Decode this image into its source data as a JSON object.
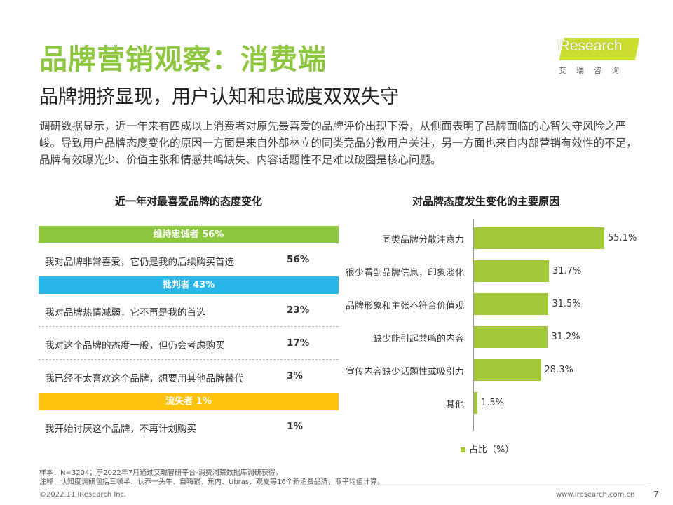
{
  "header": {
    "title": "品牌营销观察：消费端",
    "subtitle": "品牌拥挤显现，用户认知和忠诚度双双失守",
    "intro": "调研数据显示，近一年来有四成以上消费者对原先最喜爱的品牌评价出现下滑，从侧面表明了品牌面临的心智失守风险之严峻。导致用户品牌态度变化的原因一方面是来自外部林立的同类竞品分散用户关注，另一方面也来自内部营销有效性的不足，品牌有效曝光少、价值主张和情感共鸣缺失、内容话题性不足难以破圈是核心问题。"
  },
  "logo": {
    "word_i": "i",
    "word_rest": "Research",
    "cn": "艾瑞咨询"
  },
  "colors": {
    "green": "#8dc63f",
    "blue": "#29b6e8",
    "yellow": "#ffc20e",
    "bar": "#a3c93a"
  },
  "chart_data": [
    {
      "type": "table",
      "title": "近一年对最喜爱品牌的态度变化",
      "groups": [
        {
          "name": "维持忠诚者 56%",
          "color": "#8dc63f",
          "rows": [
            {
              "label": "我对品牌非常喜爱，它仍是我的后续购买首选",
              "value": "56%"
            }
          ]
        },
        {
          "name": "批判者 43%",
          "color": "#29b6e8",
          "rows": [
            {
              "label": "我对品牌热情减弱，它不再是我的首选",
              "value": "23%"
            },
            {
              "label": "我对这个品牌的态度一般，但仍会考虑购买",
              "value": "17%"
            },
            {
              "label": "我已经不太喜欢这个品牌，想要用其他品牌替代",
              "value": "3%"
            }
          ]
        },
        {
          "name": "流失者 1%",
          "color": "#ffc20e",
          "rows": [
            {
              "label": "我开始讨厌这个品牌，不再计划购买",
              "value": "1%"
            }
          ]
        }
      ]
    },
    {
      "type": "bar",
      "orientation": "horizontal",
      "title": "对品牌态度发生变化的主要原因",
      "categories": [
        "同类品牌分散注意力",
        "很少看到品牌信息，印象淡化",
        "品牌形象和主张不符合价值观",
        "缺少能引起共鸣的内容",
        "宣传内容缺少话题性或吸引力",
        "其他"
      ],
      "values": [
        55.1,
        31.7,
        31.5,
        31.2,
        28.3,
        1.5
      ],
      "value_labels": [
        "55.1%",
        "31.7%",
        "31.5%",
        "31.2%",
        "28.3%",
        "1.5%"
      ],
      "legend": "占比（%）",
      "legend_position": "bottom",
      "xlim": [
        0,
        55.1
      ]
    }
  ],
  "notes": {
    "sample": "样本：N=3204；于2022年7月通过艾瑞智研平台-消费洞察数据库调研获得。",
    "note": "注释：认知度调研包括三顿半、认养一头牛、自嗨锅、蕉内、Ubras、观夏等16个新消费品牌，取平均值计算。"
  },
  "footer": {
    "copyright": "©2022.11 iResearch Inc.",
    "url": "www.iresearch.com.cn",
    "page": "7"
  }
}
